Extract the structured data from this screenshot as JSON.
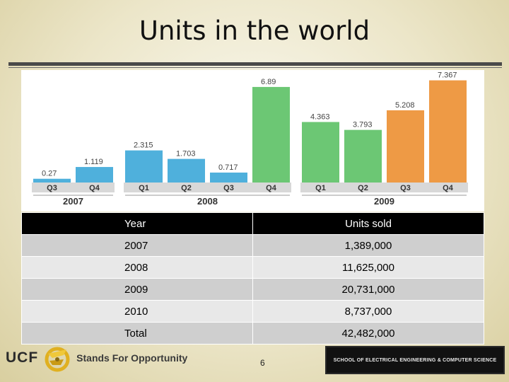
{
  "slide": {
    "title": "Units in the world",
    "page_number": "6"
  },
  "chart_data": {
    "type": "bar",
    "categories": [
      "Q3",
      "Q4",
      "Q1",
      "Q2",
      "Q3",
      "Q4",
      "Q1",
      "Q2",
      "Q3",
      "Q4"
    ],
    "years": [
      {
        "label": "2007",
        "start": 0,
        "end": 1
      },
      {
        "label": "2008",
        "start": 2,
        "end": 5
      },
      {
        "label": "2009",
        "start": 6,
        "end": 9
      }
    ],
    "values": [
      0.27,
      1.119,
      2.315,
      1.703,
      0.717,
      6.89,
      4.363,
      3.793,
      5.208,
      7.367
    ],
    "value_labels": [
      "0.27",
      "1.119",
      "2.315",
      "1.703",
      "0.717",
      "6.89",
      "4.363",
      "3.793",
      "5.208",
      "7.367"
    ],
    "colors": [
      "#4fb0dc",
      "#4fb0dc",
      "#4fb0dc",
      "#4fb0dc",
      "#4fb0dc",
      "#6cc774",
      "#6cc774",
      "#6cc774",
      "#ee9a45",
      "#ee9a45"
    ],
    "ylim": [
      0,
      7.6
    ],
    "title": "",
    "xlabel": "",
    "ylabel": ""
  },
  "table": {
    "headers": [
      "Year",
      "Units sold"
    ],
    "rows": [
      [
        "2007",
        "1,389,000"
      ],
      [
        "2008",
        "11,625,000"
      ],
      [
        "2009",
        "20,731,000"
      ],
      [
        "2010",
        "8,737,000"
      ],
      [
        "Total",
        "42,482,000"
      ]
    ]
  },
  "footer": {
    "logo_text": "UCF",
    "tagline": "Stands For Opportunity",
    "school": "SCHOOL OF ELECTRICAL ENGINEERING & COMPUTER SCIENCE"
  }
}
